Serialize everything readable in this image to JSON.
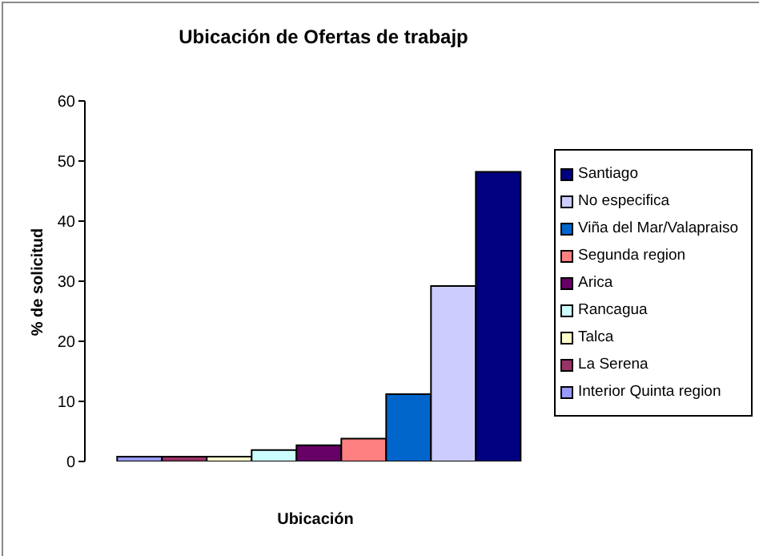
{
  "chart_data": {
    "type": "bar",
    "title": "Ubicación de Ofertas de trabajp",
    "xlabel": "Ubicación",
    "ylabel": "% de solicitud",
    "categories": [
      null
    ],
    "series": [
      {
        "name": "Interior Quinta region",
        "color": "#9999ff",
        "values": [
          0.8
        ]
      },
      {
        "name": "La Serena",
        "color": "#993366",
        "values": [
          0.8
        ]
      },
      {
        "name": "Talca",
        "color": "#ffffcc",
        "values": [
          0.8
        ]
      },
      {
        "name": "Rancagua",
        "color": "#ccffff",
        "values": [
          1.9
        ]
      },
      {
        "name": "Arica",
        "color": "#660066",
        "values": [
          2.7
        ]
      },
      {
        "name": "Segunda region",
        "color": "#ff8080",
        "values": [
          3.8
        ]
      },
      {
        "name": "Viña del Mar/Valapraiso",
        "color": "#0066cc",
        "values": [
          11.2
        ]
      },
      {
        "name": "No especifica",
        "color": "#ccccff",
        "values": [
          29.2
        ]
      },
      {
        "name": "Santiago",
        "color": "#000080",
        "values": [
          48.2
        ]
      }
    ],
    "ylim": [
      0,
      60
    ],
    "yticks": [
      0,
      10,
      20,
      30,
      40,
      50,
      60
    ],
    "grid": false,
    "legend": "right"
  }
}
